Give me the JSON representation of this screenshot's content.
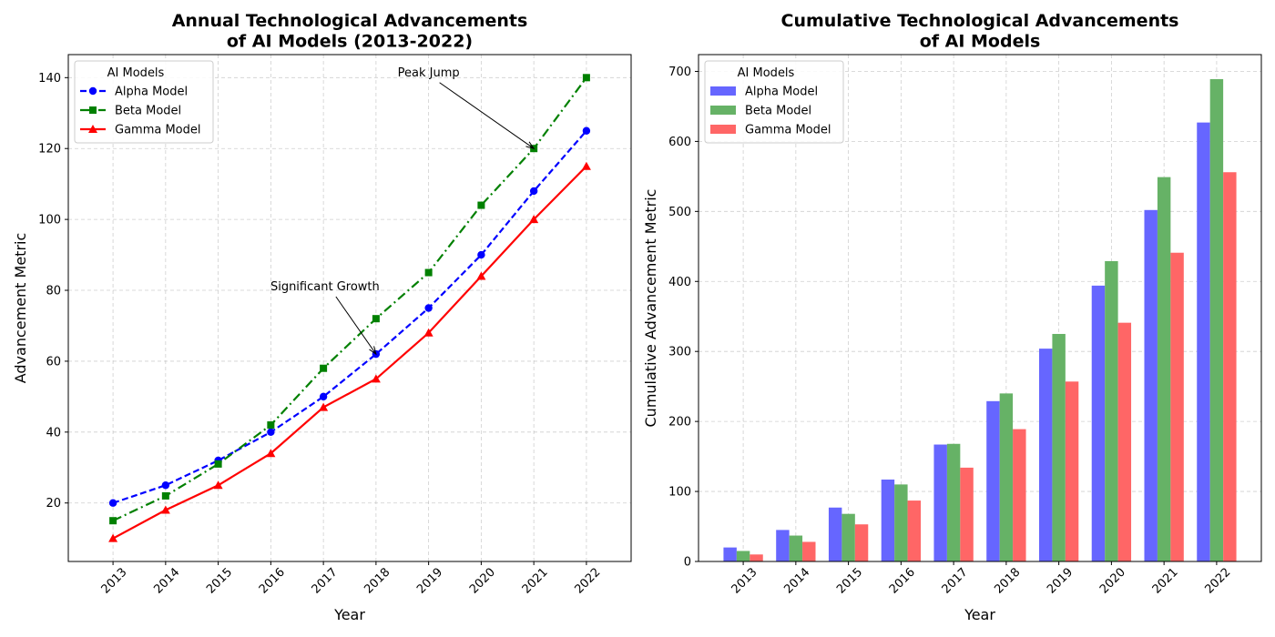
{
  "charts": [
    {
      "chart_id": "annual",
      "type": "line",
      "title_lines": [
        "Annual Technological Advancements",
        "of AI Models (2013-2022)"
      ],
      "xlabel": "Year",
      "ylabel": "Advancement Metric",
      "xlim": [
        2012.15,
        2022.85
      ],
      "ylim": [
        3.5,
        146.5
      ],
      "yticks": [
        20,
        40,
        60,
        80,
        100,
        120,
        140
      ],
      "grid": true,
      "legend": {
        "title": "AI Models",
        "placement": "top-left"
      },
      "categories": [
        "2013",
        "2014",
        "2015",
        "2016",
        "2017",
        "2018",
        "2019",
        "2020",
        "2021",
        "2022"
      ],
      "series": [
        {
          "name": "Alpha Model",
          "color": "#0000ff",
          "linestyle": "dashed",
          "marker": "circle",
          "values": [
            20,
            25,
            32,
            40,
            50,
            62,
            75,
            90,
            108,
            125
          ]
        },
        {
          "name": "Beta Model",
          "color": "#008000",
          "linestyle": "dashdot",
          "marker": "square",
          "values": [
            15,
            22,
            31,
            42,
            58,
            72,
            85,
            104,
            120,
            140
          ]
        },
        {
          "name": "Gamma Model",
          "color": "#ff0000",
          "linestyle": "solid",
          "marker": "triangle",
          "values": [
            10,
            18,
            25,
            34,
            47,
            55,
            68,
            84,
            100,
            115
          ]
        }
      ],
      "annotations": [
        {
          "text": "Significant Growth",
          "text_x": 2017.03,
          "text_y": 80,
          "point_x": 2018,
          "point_y": 62
        },
        {
          "text": "Peak Jump",
          "text_x": 2019.0,
          "text_y": 140.4,
          "point_x": 2021,
          "point_y": 120
        }
      ]
    },
    {
      "chart_id": "cumulative",
      "type": "bar",
      "title_lines": [
        "Cumulative Technological Advancements",
        "of AI Models"
      ],
      "xlabel": "Year",
      "ylabel": "Cumulative Advancement Metric",
      "xlim": [
        2012.15,
        2022.85
      ],
      "ylim": [
        0,
        724
      ],
      "yticks": [
        0,
        100,
        200,
        300,
        400,
        500,
        600,
        700
      ],
      "grid": true,
      "legend": {
        "title": "AI Models",
        "placement": "top-left"
      },
      "categories": [
        "2013",
        "2014",
        "2015",
        "2016",
        "2017",
        "2018",
        "2019",
        "2020",
        "2021",
        "2022"
      ],
      "series": [
        {
          "name": "Alpha Model",
          "color": "#6666ff",
          "values": [
            20,
            45,
            77,
            117,
            167,
            229,
            304,
            394,
            502,
            627
          ]
        },
        {
          "name": "Beta Model",
          "color": "#66b266",
          "values": [
            15,
            37,
            68,
            110,
            168,
            240,
            325,
            429,
            549,
            689
          ]
        },
        {
          "name": "Gamma Model",
          "color": "#ff6666",
          "values": [
            10,
            28,
            53,
            87,
            134,
            189,
            257,
            341,
            441,
            556
          ]
        }
      ]
    }
  ]
}
